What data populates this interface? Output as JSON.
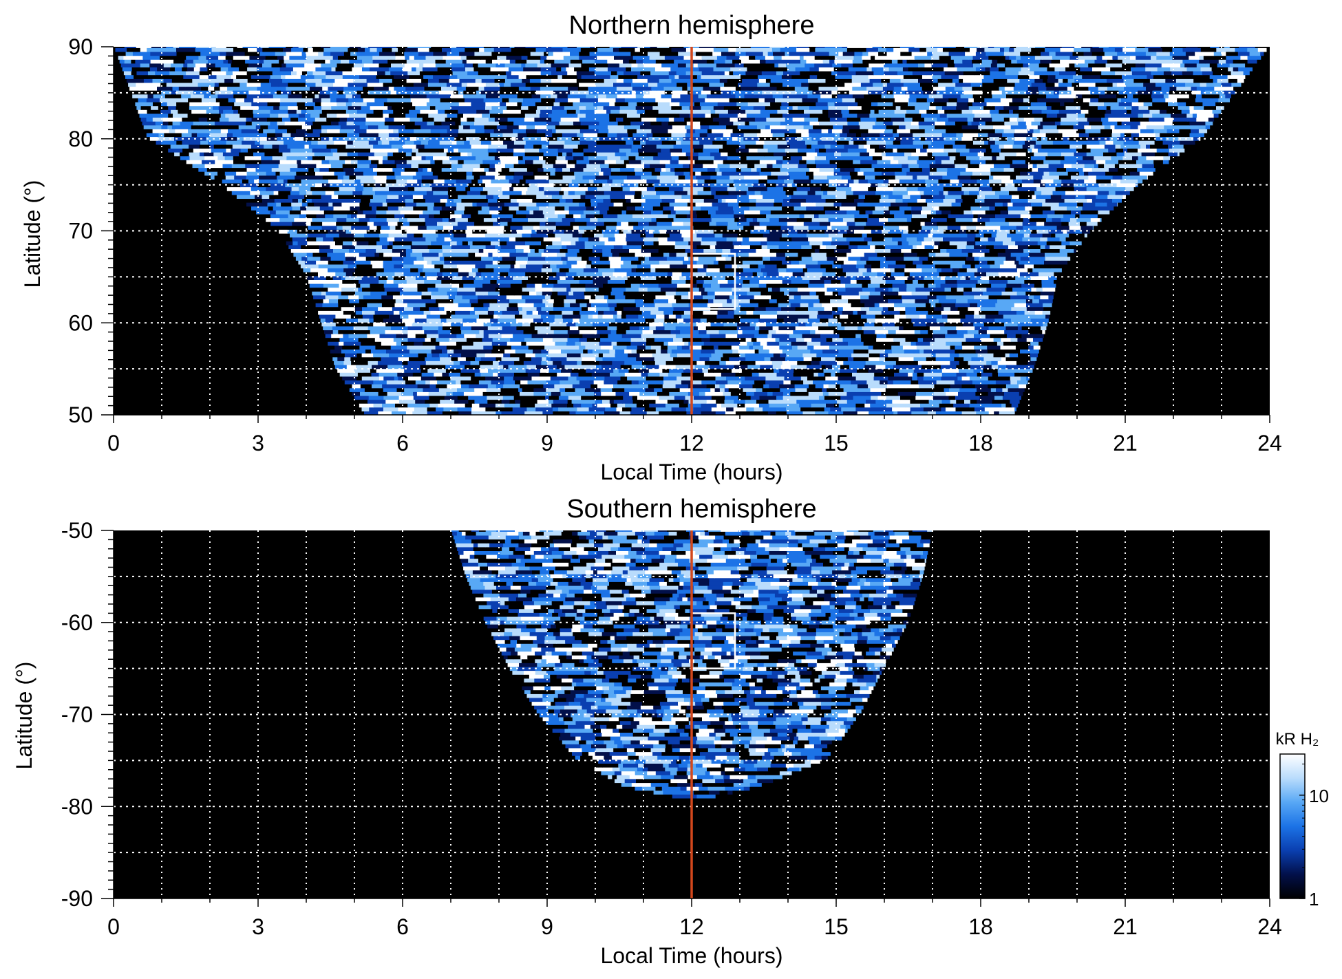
{
  "colors": {
    "background": "#000000",
    "noon_line": "#d2471c",
    "grid": "#ffffff",
    "colormap": [
      "#000000",
      "#02104a",
      "#0a3fb0",
      "#1c73e6",
      "#58a8f5",
      "#b9dcfc",
      "#ffffff"
    ]
  },
  "chart_data": [
    {
      "type": "heatmap",
      "title": "Northern hemisphere",
      "xlabel": "Local Time (hours)",
      "ylabel": "Latitude (°)",
      "xlim": [
        0,
        24
      ],
      "ylim": [
        50,
        90
      ],
      "xticks": [
        "0",
        "3",
        "6",
        "9",
        "12",
        "15",
        "18",
        "21",
        "24"
      ],
      "yticks": [
        "50",
        "60",
        "70",
        "80",
        "90"
      ],
      "grid": true,
      "noon_line_x": 12,
      "coverage_profile": [
        [
          50,
          5.2,
          18.7
        ],
        [
          55,
          4.6,
          19.1
        ],
        [
          60,
          4.3,
          19.4
        ],
        [
          65,
          4.0,
          19.6
        ],
        [
          70,
          3.4,
          20.3
        ],
        [
          75,
          2.2,
          21.3
        ],
        [
          80,
          0.7,
          22.6
        ],
        [
          90,
          0,
          24
        ]
      ],
      "box": {
        "lt": [
          12,
          12.9
        ],
        "lat": [
          61.5,
          67.5
        ]
      },
      "intensity_scale": "log",
      "intensity_range_kR": [
        1,
        25
      ]
    },
    {
      "type": "heatmap",
      "title": "Southern hemisphere",
      "xlabel": "Local Time (hours)",
      "ylabel": "Latitude (°)",
      "xlim": [
        0,
        24
      ],
      "ylim": [
        -90,
        -50
      ],
      "xticks": [
        "0",
        "3",
        "6",
        "9",
        "12",
        "15",
        "18",
        "21",
        "24"
      ],
      "yticks": [
        "-50",
        "-60",
        "-70",
        "-80",
        "-90"
      ],
      "grid": true,
      "noon_line_x": 12,
      "coverage_profile": [
        [
          -50,
          7.0,
          17.0
        ],
        [
          -55,
          7.3,
          16.8
        ],
        [
          -60,
          7.7,
          16.5
        ],
        [
          -65,
          8.2,
          16.0
        ],
        [
          -70,
          8.8,
          15.5
        ],
        [
          -75,
          9.6,
          14.8
        ],
        [
          -78,
          10.6,
          13.4
        ],
        [
          -79.3,
          11.8,
          12.3
        ]
      ],
      "box": {
        "lt": [
          12,
          12.9
        ],
        "lat": [
          -65,
          -59
        ]
      },
      "intensity_scale": "log",
      "intensity_range_kR": [
        1,
        25
      ]
    }
  ],
  "colorbar": {
    "title": "kR H₂",
    "ticks": [
      {
        "label": "10",
        "value": 10
      },
      {
        "label": "1",
        "value": 1
      }
    ],
    "range": [
      1,
      25
    ]
  }
}
